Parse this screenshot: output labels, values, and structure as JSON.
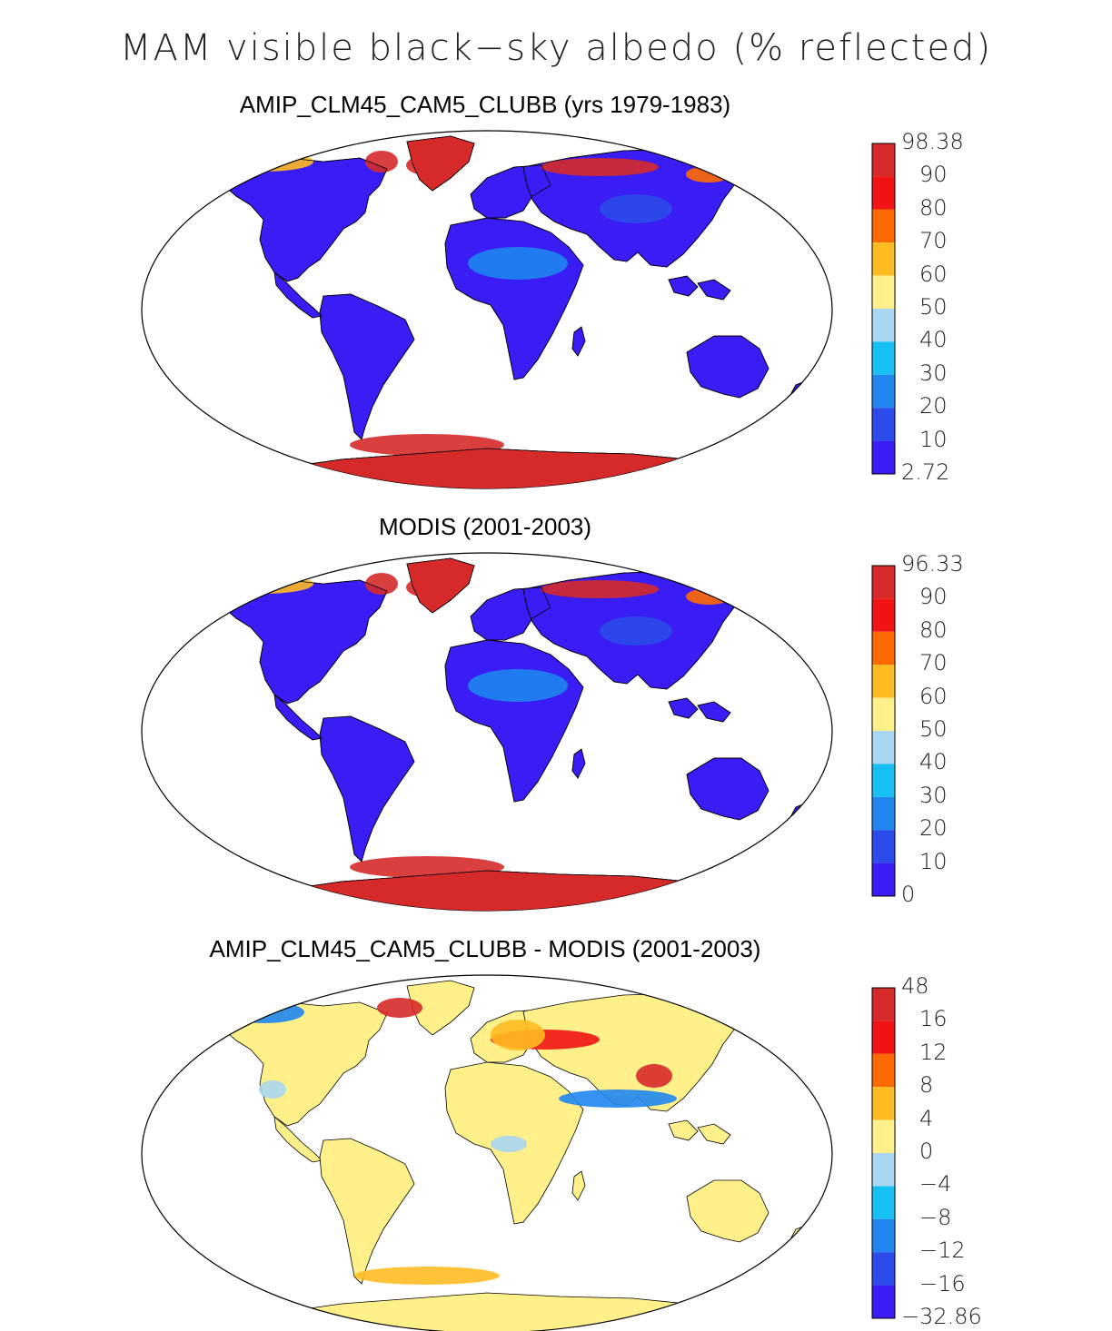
{
  "title": "MAM visible black−sky albedo (% reflected)",
  "panels": [
    {
      "title": "AMIP_CLM45_CAM5_CLUBB (yrs 1979-1983)",
      "colorbar": {
        "labels": [
          "98.38",
          "90",
          "80",
          "70",
          "60",
          "50",
          "40",
          "30",
          "20",
          "10",
          "2.72"
        ],
        "colors": [
          "#d62a2a",
          "#f01414",
          "#ff6a00",
          "#ffbb22",
          "#fff08a",
          "#a9d6f0",
          "#17c0f2",
          "#1f86f0",
          "#2b4bea",
          "#3a1cf5"
        ]
      }
    },
    {
      "title": "MODIS (2001-2003)",
      "colorbar": {
        "labels": [
          "96.33",
          "90",
          "80",
          "70",
          "60",
          "50",
          "40",
          "30",
          "20",
          "10",
          "0"
        ],
        "colors": [
          "#d62a2a",
          "#f01414",
          "#ff6a00",
          "#ffbb22",
          "#fff08a",
          "#a9d6f0",
          "#17c0f2",
          "#1f86f0",
          "#2b4bea",
          "#3a1cf5"
        ]
      }
    },
    {
      "title": "AMIP_CLM45_CAM5_CLUBB - MODIS (2001-2003)",
      "colorbar": {
        "labels": [
          "48",
          "16",
          "12",
          "8",
          "4",
          "0",
          "−4",
          "−8",
          "−12",
          "−16",
          "−32.86"
        ],
        "colors": [
          "#d62a2a",
          "#f01414",
          "#ff6a00",
          "#ffbb22",
          "#fff08a",
          "#a9d6f0",
          "#17c0f2",
          "#1f86f0",
          "#2b4bea",
          "#3a1cf5"
        ]
      }
    }
  ]
}
